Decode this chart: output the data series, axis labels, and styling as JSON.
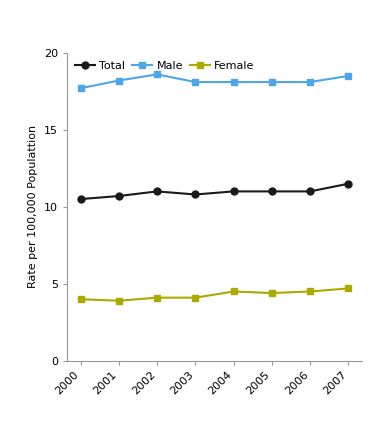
{
  "years": [
    2000,
    2001,
    2002,
    2003,
    2004,
    2005,
    2006,
    2007
  ],
  "total": [
    10.5,
    10.7,
    11.0,
    10.8,
    11.0,
    11.0,
    11.0,
    11.5
  ],
  "male": [
    17.7,
    18.2,
    18.6,
    18.1,
    18.1,
    18.1,
    18.1,
    18.5
  ],
  "female": [
    4.0,
    3.9,
    4.1,
    4.1,
    4.5,
    4.4,
    4.5,
    4.7
  ],
  "total_color": "#1a1a1a",
  "male_color": "#4da6e8",
  "female_color": "#aaaa00",
  "ylabel": "Rate per 100,000 Populattion",
  "ylim": [
    0,
    20
  ],
  "yticks": [
    0,
    5,
    10,
    15,
    20
  ],
  "legend_labels": [
    "Total",
    "Male",
    "Female"
  ],
  "bg_color": "#ffffff",
  "spine_color": "#999999",
  "tick_fontsize": 8,
  "ylabel_fontsize": 8,
  "legend_fontsize": 8,
  "linewidth": 1.5,
  "marker_size_circle": 5,
  "marker_size_square": 5
}
